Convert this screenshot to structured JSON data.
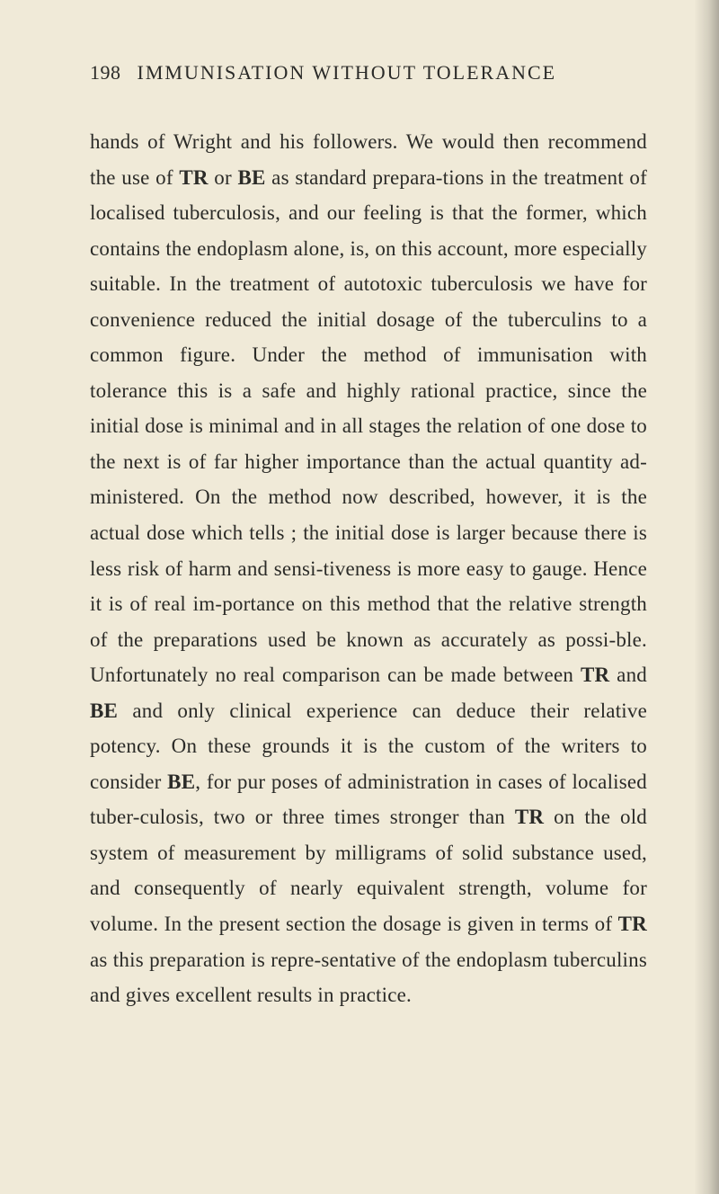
{
  "page": {
    "number": "198",
    "title": "IMMUNISATION WITHOUT TOLERANCE",
    "body_html": "hands of Wright and his followers. We would then recommend the use of <span class=\"bold\">TR</span> or <span class=\"bold\">BE</span> as standard prepara-tions in the treatment of localised tuberculosis, and our feeling is that the former, which contains the endoplasm alone, is, on this account, more especially suitable. In the treatment of autotoxic tuberculosis we have for convenience reduced the initial dosage of the tuberculins to a common figure. Under the method of immunisation with tolerance this is a safe and highly rational practice, since the initial dose is minimal and in all stages the relation of one dose to the next is of far higher importance than the actual quantity ad-ministered. On the method now described, however, it is the actual dose which tells ; the initial dose is larger because there is less risk of harm and sensi-tiveness is more easy to gauge. Hence it is of real im-portance on this method that the relative strength of the preparations used be known as accurately as possi-ble. Unfortunately no real comparison can be made between <span class=\"bold\">TR</span> and <span class=\"bold\">BE</span> and only clinical experience can deduce their relative potency. On these grounds it is the custom of the writers to consider <span class=\"bold\">BE</span>, for pur poses of administration in cases of localised tuber-culosis, two or three times stronger than <span class=\"bold\">TR</span> on the old system of measurement by milligrams of solid substance used, and consequently of nearly equivalent strength, volume for volume. In the present section the dosage is given in terms of <span class=\"bold\">TR</span> as this preparation is repre-sentative of the endoplasm tuberculins and gives excellent results in practice."
  },
  "style": {
    "background_color": "#f0ead8",
    "text_color": "#2b2b28",
    "header_fontsize": 22,
    "body_fontsize": 23,
    "line_height": 1.72
  }
}
